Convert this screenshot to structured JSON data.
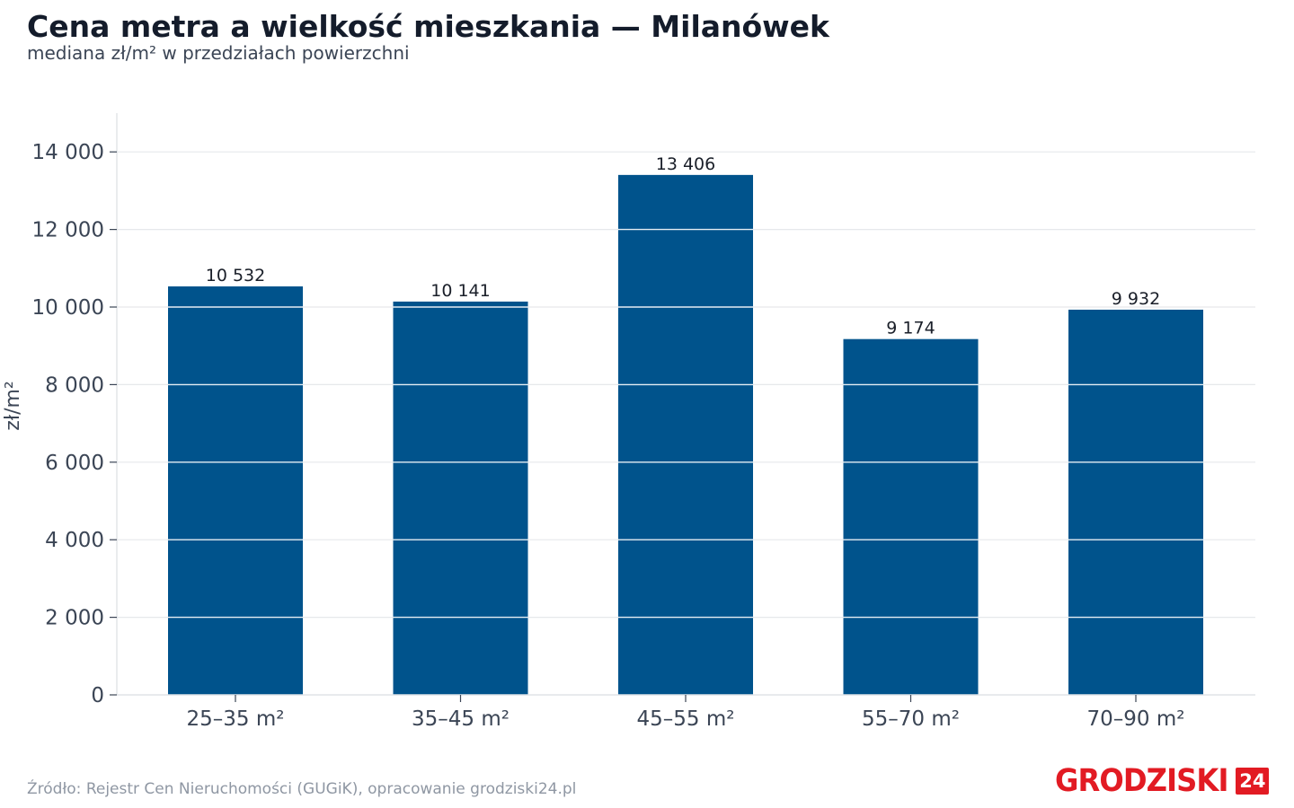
{
  "header": {
    "title": "Cena metra a wielkość mieszkania — Milanówek",
    "subtitle": "mediana zł/m² w przedziałach powierzchni"
  },
  "chart_data": {
    "type": "bar",
    "categories": [
      "25–35 m²",
      "35–45 m²",
      "45–55 m²",
      "55–70 m²",
      "70–90 m²"
    ],
    "values": [
      10532,
      10141,
      13406,
      9174,
      9932
    ],
    "data_labels": [
      "10 532",
      "10 141",
      "13 406",
      "9 174",
      "9 932"
    ],
    "ylabel": "zł/m²",
    "ylim": [
      0,
      15000
    ],
    "yticks": [
      0,
      2000,
      4000,
      6000,
      8000,
      10000,
      12000,
      14000
    ],
    "ytick_labels": [
      "0",
      "2 000",
      "4 000",
      "6 000",
      "8 000",
      "10 000",
      "12 000",
      "14 000"
    ],
    "grid": true,
    "bar_color": "#00538c"
  },
  "footer": {
    "source": "Źródło: Rejestr Cen Nieruchomości (GUGiK), opracowanie grodziski24.pl",
    "logo_text": "GRODZISKI",
    "logo_badge": "24",
    "logo_color": "#e21b23"
  }
}
